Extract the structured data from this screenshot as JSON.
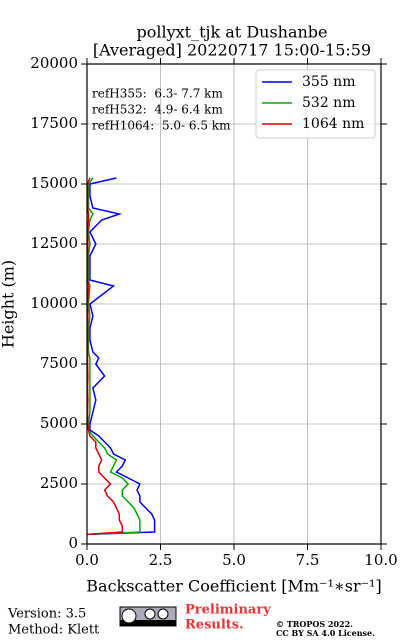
{
  "chart_data": {
    "type": "profile",
    "title": [
      "pollyxt_tjk at Dushanbe",
      "[Averaged] 20220717 15:00-15:59"
    ],
    "xlabel": "Backscatter Coefficient [Mm⁻¹∗sr⁻¹]",
    "ylabel": "Height (m)",
    "annotations": [
      "refH355:  6.3- 7.7 km",
      "refH532:  4.9- 6.4 km",
      "refH1064:  5.0- 6.5 km"
    ],
    "heights": [
      400,
      500,
      750,
      1000,
      1250,
      1500,
      1750,
      2000,
      2250,
      2500,
      2750,
      3000,
      3250,
      3500,
      3750,
      4000,
      4250,
      4500,
      4750,
      5000,
      5500,
      6000,
      6500,
      7000,
      7500,
      7750,
      8000,
      8500,
      9000,
      9500,
      10000,
      10750,
      11000,
      12000,
      12500,
      13000,
      13500,
      13750,
      14000,
      14500,
      15000,
      15250
    ],
    "series": [
      {
        "name": "355 nm",
        "color": "#0000ff",
        "values": [
          0.0,
          2.3,
          2.3,
          2.3,
          2.2,
          2.0,
          1.8,
          1.8,
          1.7,
          1.8,
          1.4,
          1.0,
          1.2,
          1.3,
          0.9,
          0.8,
          0.6,
          0.4,
          0.1,
          0.1,
          0.2,
          0.3,
          0.2,
          0.6,
          0.3,
          0.4,
          0.2,
          0.1,
          0.1,
          0.2,
          0.1,
          0.9,
          0.1,
          0.1,
          0.3,
          0.1,
          0.5,
          1.1,
          0.2,
          0.1,
          0.1,
          1.0
        ]
      },
      {
        "name": "532 nm",
        "color": "#00aa00",
        "values": [
          0.0,
          1.8,
          1.8,
          1.8,
          1.7,
          1.6,
          1.4,
          1.2,
          1.2,
          1.4,
          1.2,
          0.8,
          0.9,
          1.0,
          0.7,
          0.6,
          0.4,
          0.2,
          0.05,
          0.05,
          0.1,
          0.1,
          0.1,
          0.1,
          0.1,
          0.1,
          0.05,
          0.05,
          0.05,
          0.1,
          0.05,
          0.1,
          0.05,
          0.05,
          0.1,
          0.05,
          0.1,
          0.2,
          0.05,
          0.05,
          0.05,
          0.2
        ]
      },
      {
        "name": "1064 nm",
        "color": "#dd0000",
        "values": [
          0.0,
          1.2,
          1.2,
          1.1,
          1.1,
          1.0,
          0.9,
          0.7,
          0.6,
          0.8,
          0.6,
          0.4,
          0.4,
          0.5,
          0.4,
          0.3,
          0.3,
          0.1,
          0.05,
          0.02,
          0.02,
          0.03,
          0.02,
          0.03,
          0.02,
          0.02,
          0.02,
          0.02,
          0.02,
          0.03,
          0.02,
          0.05,
          0.02,
          0.02,
          0.03,
          0.02,
          0.05,
          0.05,
          0.02,
          0.02,
          0.02,
          0.1
        ]
      }
    ],
    "xlim": [
      0,
      10
    ],
    "xticks": [
      {
        "value": 0,
        "label": "0.0"
      },
      {
        "value": 2.5,
        "label": "2.5"
      },
      {
        "value": 5,
        "label": "5.0"
      },
      {
        "value": 7.5,
        "label": "7.5"
      },
      {
        "value": 10,
        "label": "10.0"
      }
    ],
    "ylim": [
      0,
      20000
    ],
    "yticks": [
      0,
      2500,
      5000,
      7500,
      10000,
      12500,
      15000,
      17500,
      20000
    ],
    "grid": true,
    "legend": "upper right"
  },
  "footer": {
    "version": "Version: 3.5",
    "method": "Method: Klett",
    "preliminary": [
      "Preliminary",
      "Results."
    ],
    "copyright": [
      "© TROPOS 2022.",
      "CC BY SA 4.0 License."
    ]
  }
}
